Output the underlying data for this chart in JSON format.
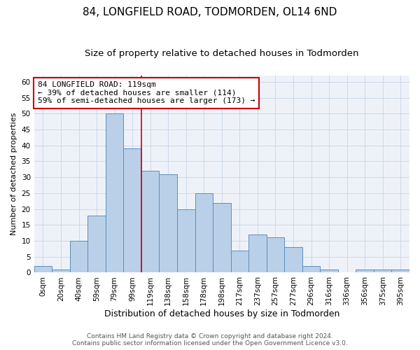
{
  "title": "84, LONGFIELD ROAD, TODMORDEN, OL14 6ND",
  "subtitle": "Size of property relative to detached houses in Todmorden",
  "xlabel": "Distribution of detached houses by size in Todmorden",
  "ylabel": "Number of detached properties",
  "categories": [
    "0sqm",
    "20sqm",
    "40sqm",
    "59sqm",
    "79sqm",
    "99sqm",
    "119sqm",
    "138sqm",
    "158sqm",
    "178sqm",
    "198sqm",
    "217sqm",
    "237sqm",
    "257sqm",
    "277sqm",
    "296sqm",
    "316sqm",
    "336sqm",
    "356sqm",
    "375sqm",
    "395sqm"
  ],
  "values": [
    2,
    1,
    10,
    18,
    50,
    39,
    32,
    31,
    20,
    25,
    22,
    7,
    12,
    11,
    8,
    2,
    1,
    0,
    1,
    1,
    1
  ],
  "bar_color": "#bad0e8",
  "bar_edge_color": "#5a8fc0",
  "vline_color": "#cc0000",
  "annotation_text": "84 LONGFIELD ROAD: 119sqm\n← 39% of detached houses are smaller (114)\n59% of semi-detached houses are larger (173) →",
  "annotation_box_color": "#ffffff",
  "annotation_box_edge_color": "#cc0000",
  "ylim": [
    0,
    62
  ],
  "yticks": [
    0,
    5,
    10,
    15,
    20,
    25,
    30,
    35,
    40,
    45,
    50,
    55,
    60
  ],
  "grid_color": "#ccd8ea",
  "background_color": "#eef2f8",
  "footer_line1": "Contains HM Land Registry data © Crown copyright and database right 2024.",
  "footer_line2": "Contains public sector information licensed under the Open Government Licence v3.0.",
  "title_fontsize": 11,
  "subtitle_fontsize": 9.5,
  "xlabel_fontsize": 9,
  "ylabel_fontsize": 8,
  "tick_fontsize": 7.5,
  "annotation_fontsize": 8,
  "footer_fontsize": 6.5
}
